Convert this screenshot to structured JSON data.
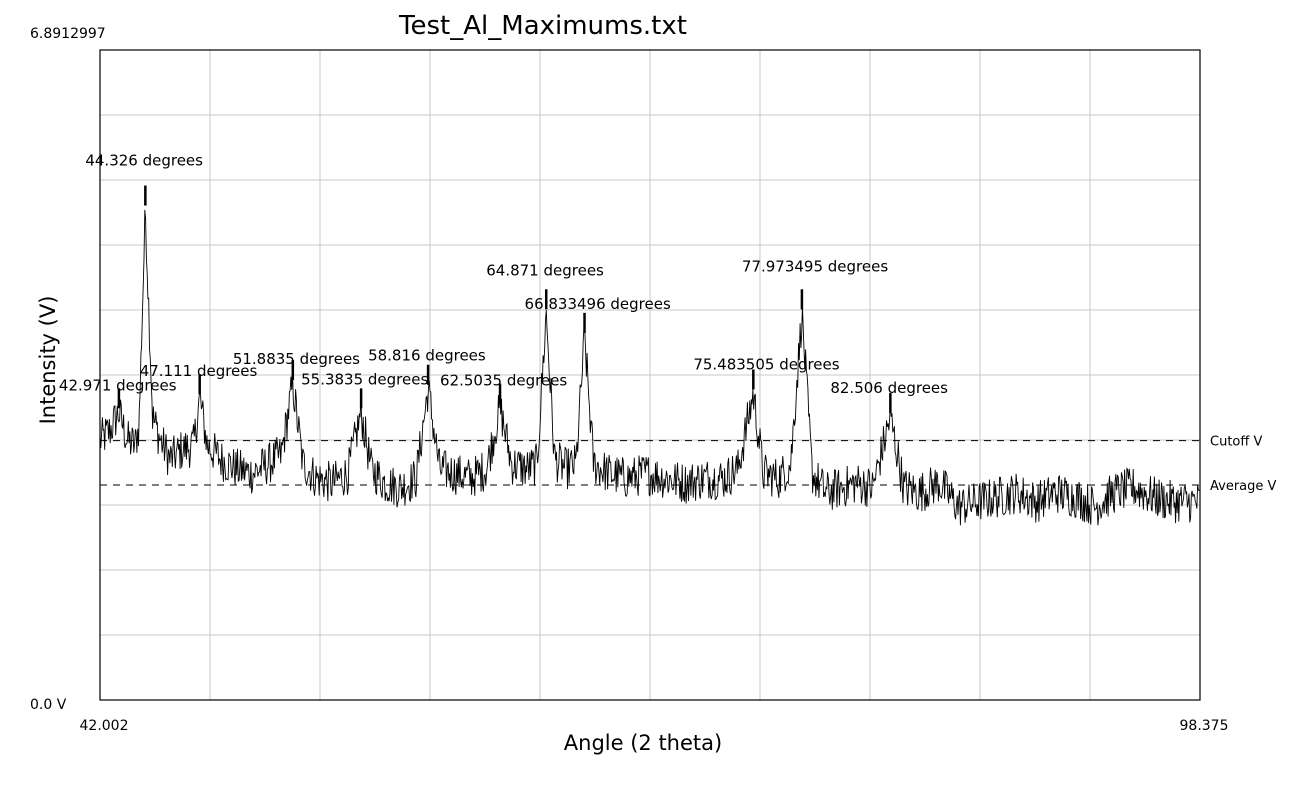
{
  "chart_data": {
    "type": "line",
    "title": "Test_Al_Maximums.txt",
    "xlabel": "Angle (2 theta)",
    "ylabel": "Intensity (V)",
    "xlim": [
      42.002,
      98.375
    ],
    "ylim": [
      0.0,
      6.8912997
    ],
    "x_tick_labels": [
      "42.002",
      "98.375"
    ],
    "y_tick_labels": [
      "0.0 V",
      "6.8912997"
    ],
    "grid": true,
    "reference_lines": [
      {
        "label": "Cutoff V",
        "value": 2.75,
        "style": "dashed"
      },
      {
        "label": "Average V",
        "value": 2.28,
        "style": "dashed"
      }
    ],
    "peaks": [
      {
        "label": "42.971 degrees",
        "x": 42.971,
        "y": 3.05
      },
      {
        "label": "44.326 degrees",
        "x": 44.326,
        "y": 5.2
      },
      {
        "label": "47.111 degrees",
        "x": 47.111,
        "y": 3.2
      },
      {
        "label": "51.8835 degrees",
        "x": 51.8835,
        "y": 3.35
      },
      {
        "label": "55.3835 degrees",
        "x": 55.3835,
        "y": 3.05
      },
      {
        "label": "58.816 degrees",
        "x": 58.816,
        "y": 3.3
      },
      {
        "label": "62.5035 degrees",
        "x": 62.5035,
        "y": 3.1
      },
      {
        "label": "64.871 degrees",
        "x": 64.871,
        "y": 4.1
      },
      {
        "label": "66.833496 degrees",
        "x": 66.833496,
        "y": 3.85
      },
      {
        "label": "75.483505 degrees",
        "x": 75.483505,
        "y": 3.25
      },
      {
        "label": "77.973495 degrees",
        "x": 77.973495,
        "y": 4.1
      },
      {
        "label": "82.506 degrees",
        "x": 82.506,
        "y": 3.0
      }
    ],
    "series": [
      {
        "x": [
          42.002,
          42.5,
          42.971,
          43.4,
          43.8,
          44.0,
          44.326,
          44.7,
          45.1,
          45.6,
          46.2,
          46.8,
          47.111,
          47.5,
          48.2,
          49.0,
          49.8,
          50.6,
          51.3,
          51.8835,
          52.4,
          53.1,
          53.9,
          54.7,
          55.3835,
          55.9,
          56.6,
          57.4,
          58.2,
          58.816,
          59.4,
          60.2,
          61.0,
          61.8,
          62.5035,
          63.1,
          63.9,
          64.4,
          64.871,
          65.3,
          65.9,
          66.4,
          66.833496,
          67.3,
          68.1,
          69.0,
          70.0,
          71.0,
          72.0,
          73.0,
          74.0,
          74.7,
          75.483505,
          76.0,
          76.8,
          77.4,
          77.973495,
          78.5,
          79.2,
          80.0,
          80.8,
          81.6,
          82.506,
          83.2,
          84.0,
          85.0,
          86.0,
          87.0,
          88.0,
          89.0,
          90.0,
          91.0,
          92.0,
          93.0,
          94.0,
          95.0,
          96.0,
          97.0,
          98.375
        ],
        "y": [
          2.75,
          2.85,
          3.05,
          2.75,
          2.7,
          2.9,
          5.2,
          3.0,
          2.75,
          2.55,
          2.65,
          2.7,
          3.2,
          2.7,
          2.55,
          2.45,
          2.4,
          2.5,
          2.6,
          3.35,
          2.5,
          2.35,
          2.3,
          2.4,
          3.05,
          2.45,
          2.3,
          2.25,
          2.35,
          3.3,
          2.45,
          2.4,
          2.35,
          2.45,
          3.1,
          2.5,
          2.45,
          2.5,
          4.1,
          2.55,
          2.45,
          2.5,
          3.85,
          2.5,
          2.4,
          2.35,
          2.4,
          2.35,
          2.3,
          2.35,
          2.35,
          2.45,
          3.25,
          2.4,
          2.35,
          2.5,
          4.1,
          2.4,
          2.2,
          2.25,
          2.3,
          2.25,
          3.0,
          2.25,
          2.2,
          2.3,
          2.05,
          2.1,
          2.15,
          2.2,
          2.1,
          2.2,
          2.15,
          2.05,
          2.2,
          2.25,
          2.15,
          2.1,
          2.1
        ]
      }
    ]
  }
}
